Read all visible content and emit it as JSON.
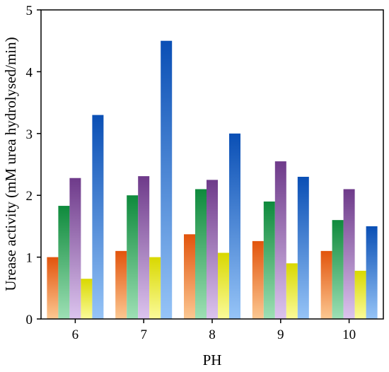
{
  "chart_data": {
    "type": "bar",
    "title": "",
    "xlabel": "PH",
    "ylabel": "Urease activity (mM urea hydrolysed/min)",
    "categories": [
      "6",
      "7",
      "8",
      "9",
      "10"
    ],
    "ylim": [
      0,
      5
    ],
    "yticks": [
      "0",
      "1",
      "2",
      "3",
      "4",
      "5"
    ],
    "grid": false,
    "legend": "none",
    "series": [
      {
        "values": [
          1.0,
          1.1,
          1.37,
          1.26,
          1.1
        ],
        "color_top": "#e2540c",
        "color_bottom": "#fcc892"
      },
      {
        "values": [
          1.83,
          2.0,
          2.1,
          1.9,
          1.6
        ],
        "color_top": "#0e8a3c",
        "color_bottom": "#9ee0b5"
      },
      {
        "values": [
          2.28,
          2.31,
          2.25,
          2.55,
          2.1
        ],
        "color_top": "#6e3a8a",
        "color_bottom": "#dcc4ee"
      },
      {
        "values": [
          0.65,
          1.0,
          1.07,
          0.9,
          0.78
        ],
        "color_top": "#d9d800",
        "color_bottom": "#fbfb9a"
      },
      {
        "values": [
          3.3,
          4.5,
          3.0,
          2.3,
          1.5
        ],
        "color_top": "#0a4fb5",
        "color_bottom": "#96c4f7"
      }
    ]
  }
}
